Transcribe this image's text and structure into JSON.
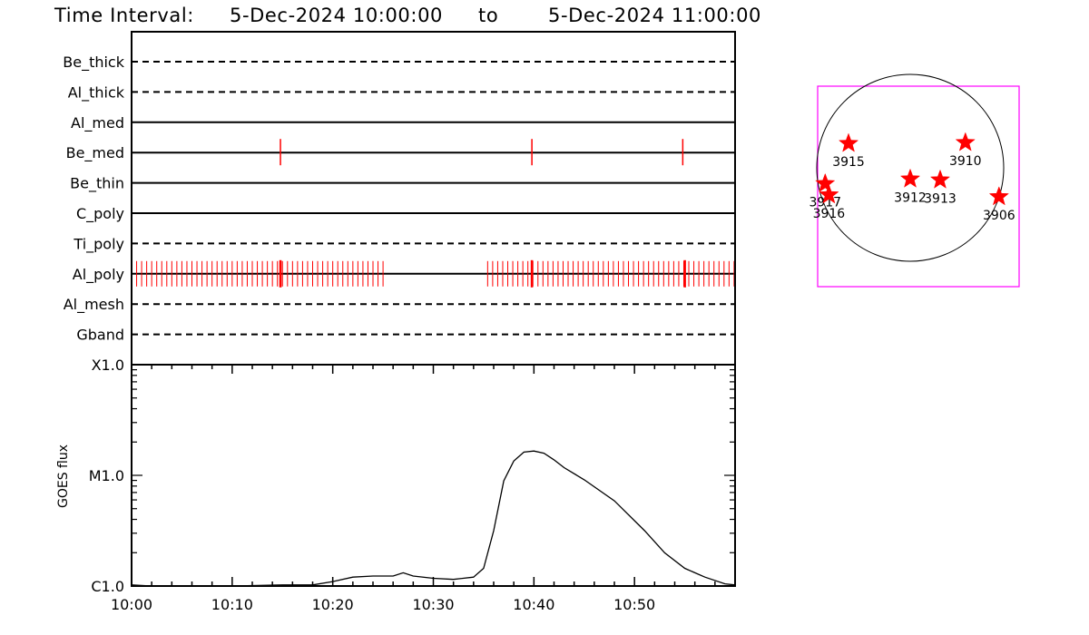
{
  "header": {
    "prefix": "Time Interval:",
    "start": "5-Dec-2024 10:00:00",
    "connector": "to",
    "end": "5-Dec-2024 11:00:00"
  },
  "chart_data": [
    {
      "type": "timeline",
      "x_ticks": [
        "10:00",
        "10:10",
        "10:20",
        "10:30",
        "10:40",
        "10:50"
      ],
      "time_range_minutes": [
        0,
        60
      ],
      "rows": [
        {
          "label": "Be_thick",
          "style": "dashed",
          "events": []
        },
        {
          "label": "Al_thick",
          "style": "dashed",
          "events": []
        },
        {
          "label": "Al_med",
          "style": "solid",
          "events": []
        },
        {
          "label": "Be_med",
          "style": "solid",
          "events": [
            14.8,
            39.8,
            54.8
          ]
        },
        {
          "label": "Be_thin",
          "style": "solid",
          "events": []
        },
        {
          "label": "C_poly",
          "style": "solid",
          "events": []
        },
        {
          "label": "Ti_poly",
          "style": "dashed",
          "events": []
        },
        {
          "label": "Al_poly",
          "style": "solid",
          "event_ranges": [
            [
              0,
              25.2,
              0.5
            ],
            [
              35.4,
              60,
              0.5
            ]
          ],
          "major_events": [
            14.8,
            39.8,
            55.0
          ]
        },
        {
          "label": "Al_mesh",
          "style": "dashed",
          "events": []
        },
        {
          "label": "Gband",
          "style": "dashed",
          "events": []
        }
      ],
      "marker_color": "#ff0000"
    },
    {
      "type": "line",
      "ylabel": "GOES flux",
      "y_ticks": [
        "C1.0",
        "M1.0",
        "X1.0"
      ],
      "y_scale": "log",
      "ylim_log10": [
        -6,
        -4
      ],
      "x_ticks": [
        "10:00",
        "10:10",
        "10:20",
        "10:30",
        "10:40",
        "10:50"
      ],
      "series": [
        {
          "x_minutes": [
            0,
            2,
            5,
            10,
            15,
            18,
            20,
            22,
            24,
            26,
            27,
            28,
            30,
            32,
            34,
            35,
            36,
            37,
            38,
            39,
            40,
            41,
            42,
            43,
            45,
            48,
            51,
            53,
            55,
            57,
            59,
            60
          ],
          "log10_flux": [
            -5.99,
            -6.0,
            -6.0,
            -6.0,
            -5.99,
            -5.99,
            -5.96,
            -5.92,
            -5.91,
            -5.91,
            -5.88,
            -5.91,
            -5.93,
            -5.94,
            -5.92,
            -5.84,
            -5.5,
            -5.05,
            -4.87,
            -4.79,
            -4.78,
            -4.8,
            -4.86,
            -4.93,
            -5.04,
            -5.23,
            -5.5,
            -5.7,
            -5.84,
            -5.92,
            -5.98,
            -5.99
          ]
        }
      ]
    },
    {
      "type": "scatter",
      "subtype": "solar-disk-map",
      "box_color": "#ff00ff",
      "marker_color": "#ff0000",
      "points": [
        {
          "label": "3915",
          "x": -0.66,
          "y": 0.26
        },
        {
          "label": "3910",
          "x": 0.59,
          "y": 0.27
        },
        {
          "label": "3917",
          "x": -0.91,
          "y": -0.17
        },
        {
          "label": "3916",
          "x": -0.87,
          "y": -0.29
        },
        {
          "label": "3912",
          "x": 0.0,
          "y": -0.12
        },
        {
          "label": "3913",
          "x": 0.32,
          "y": -0.13
        },
        {
          "label": "3906",
          "x": 0.95,
          "y": -0.31
        }
      ],
      "xlim": [
        -1.03,
        1.2
      ],
      "ylim": [
        -1.27,
        0.92
      ]
    }
  ]
}
